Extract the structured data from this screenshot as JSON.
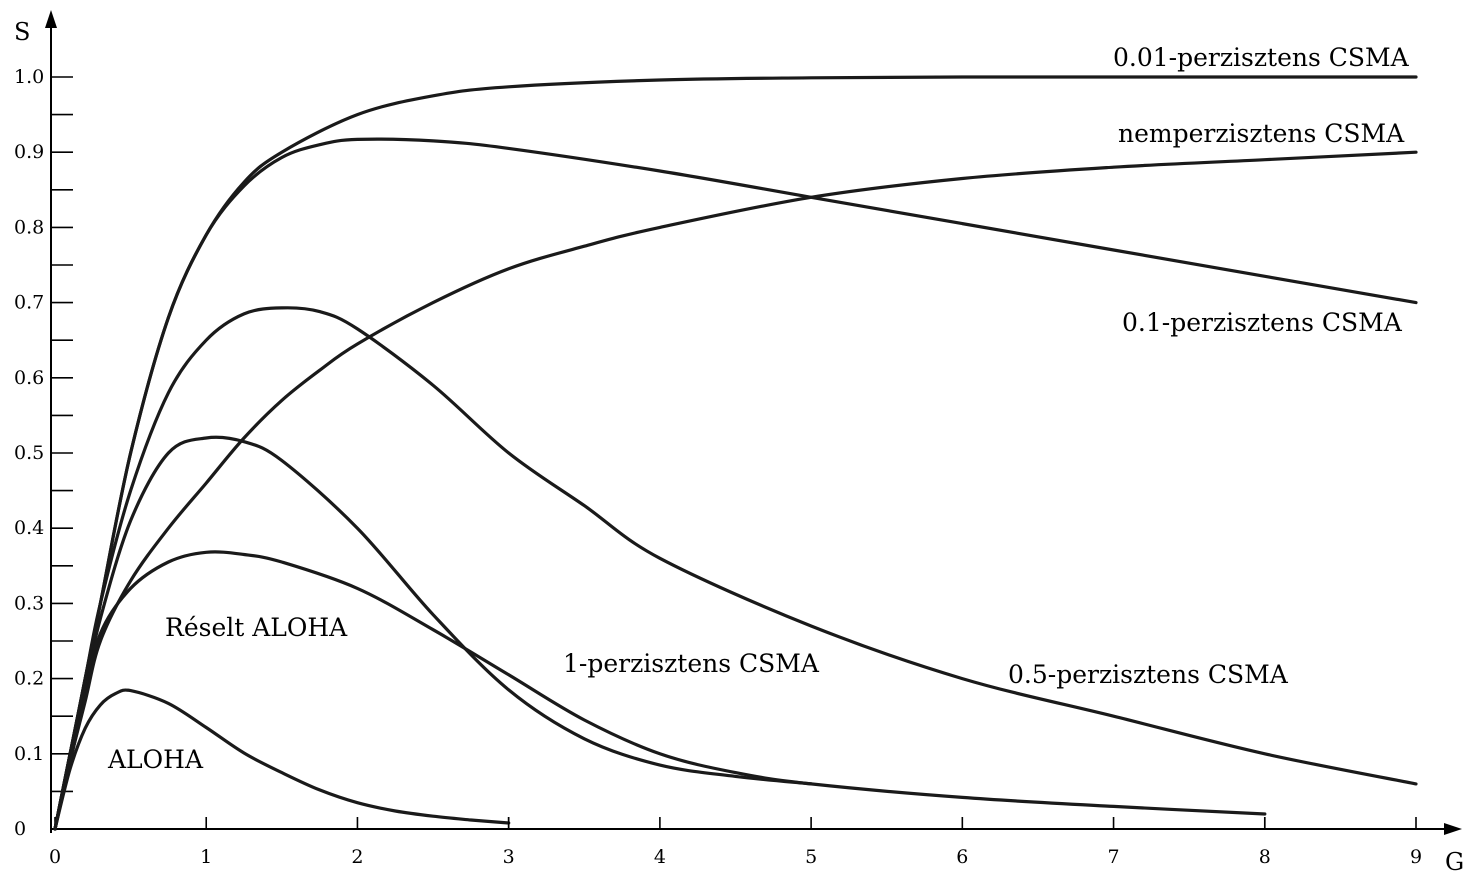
{
  "chart_data": {
    "type": "line",
    "xlabel": "G",
    "ylabel": "S",
    "xlim": [
      0,
      9
    ],
    "ylim": [
      0,
      1.0
    ],
    "x_ticks": [
      "0",
      "1",
      "2",
      "3",
      "4",
      "5",
      "6",
      "7",
      "8",
      "9"
    ],
    "y_ticks": [
      "0",
      "0.1",
      "0.2",
      "0.3",
      "0.4",
      "0.5",
      "0.6",
      "0.7",
      "0.8",
      "0.9",
      "1.0"
    ],
    "grid": false,
    "series": [
      {
        "name": "ALOHA",
        "x": [
          0,
          0.1,
          0.2,
          0.3,
          0.4,
          0.5,
          0.75,
          1.0,
          1.25,
          1.5,
          1.75,
          2.0,
          2.25,
          2.5,
          2.75,
          3.0
        ],
        "y": [
          0,
          0.08,
          0.134,
          0.165,
          0.18,
          0.184,
          0.167,
          0.135,
          0.101,
          0.075,
          0.052,
          0.035,
          0.024,
          0.017,
          0.012,
          0.008
        ]
      },
      {
        "name": "Réselt ALOHA",
        "x": [
          0,
          0.1,
          0.2,
          0.3,
          0.5,
          0.75,
          1.0,
          1.25,
          1.5,
          2.0,
          2.5,
          3.0,
          3.5,
          4.0,
          4.5,
          5.0,
          6.0,
          7.0,
          8.0
        ],
        "y": [
          0,
          0.09,
          0.175,
          0.26,
          0.32,
          0.355,
          0.368,
          0.365,
          0.355,
          0.32,
          0.265,
          0.205,
          0.145,
          0.1,
          0.075,
          0.06,
          0.042,
          0.03,
          0.02
        ]
      },
      {
        "name": "1-perzisztens CSMA",
        "x": [
          0,
          0.1,
          0.2,
          0.3,
          0.5,
          0.75,
          1.0,
          1.25,
          1.5,
          2.0,
          2.5,
          3.0,
          3.5,
          4.0,
          4.5,
          5.0
        ],
        "y": [
          0,
          0.1,
          0.19,
          0.28,
          0.41,
          0.5,
          0.52,
          0.515,
          0.49,
          0.4,
          0.285,
          0.185,
          0.12,
          0.085,
          0.07,
          0.06
        ]
      },
      {
        "name": "0.5-perzisztens CSMA",
        "x": [
          0,
          0.1,
          0.2,
          0.3,
          0.5,
          0.75,
          1.0,
          1.25,
          1.5,
          1.75,
          2.0,
          2.5,
          3.0,
          3.5,
          4.0,
          5.0,
          6.0,
          7.0,
          8.0,
          9.0
        ],
        "y": [
          0,
          0.1,
          0.2,
          0.3,
          0.45,
          0.58,
          0.65,
          0.685,
          0.693,
          0.688,
          0.665,
          0.59,
          0.5,
          0.43,
          0.36,
          0.27,
          0.2,
          0.15,
          0.1,
          0.06
        ]
      },
      {
        "name": "0.1-perzisztens CSMA",
        "x": [
          0,
          0.1,
          0.2,
          0.3,
          0.5,
          0.75,
          1.0,
          1.25,
          1.5,
          1.75,
          2.0,
          2.5,
          3.0,
          4.0,
          5.0,
          6.0,
          7.0,
          8.0,
          9.0
        ],
        "y": [
          0,
          0.1,
          0.2,
          0.3,
          0.5,
          0.68,
          0.79,
          0.855,
          0.893,
          0.91,
          0.917,
          0.915,
          0.905,
          0.875,
          0.84,
          0.805,
          0.77,
          0.735,
          0.7
        ]
      },
      {
        "name": "0.01-perzisztens CSMA",
        "x": [
          0,
          0.1,
          0.2,
          0.3,
          0.5,
          0.75,
          1.0,
          1.25,
          1.5,
          2.0,
          2.5,
          3.0,
          4.0,
          5.0,
          6.0,
          7.0,
          8.0,
          9.0
        ],
        "y": [
          0,
          0.1,
          0.2,
          0.3,
          0.5,
          0.68,
          0.79,
          0.86,
          0.9,
          0.95,
          0.975,
          0.987,
          0.996,
          0.999,
          1.0,
          1.0,
          1.0,
          1.0
        ]
      },
      {
        "name": "nemperzisztens CSMA",
        "x": [
          0,
          0.1,
          0.2,
          0.3,
          0.5,
          0.75,
          1.0,
          1.25,
          1.5,
          1.75,
          2.0,
          2.5,
          3.0,
          3.5,
          4.0,
          5.0,
          6.0,
          7.0,
          8.0,
          9.0
        ],
        "y": [
          0,
          0.09,
          0.17,
          0.25,
          0.33,
          0.4,
          0.46,
          0.52,
          0.57,
          0.61,
          0.645,
          0.7,
          0.745,
          0.775,
          0.8,
          0.84,
          0.865,
          0.88,
          0.89,
          0.9
        ]
      }
    ],
    "annotations": [
      {
        "text": "0.01-perzisztens CSMA",
        "series": "0.01-perzisztens CSMA"
      },
      {
        "text": "nemperzisztens CSMA",
        "series": "nemperzisztens CSMA"
      },
      {
        "text": "0.1-perzisztens CSMA",
        "series": "0.1-perzisztens CSMA"
      },
      {
        "text": "0.5-perzisztens CSMA",
        "series": "0.5-perzisztens CSMA"
      },
      {
        "text": "1-perzisztens CSMA",
        "series": "1-perzisztens CSMA"
      },
      {
        "text": "Réselt ALOHA",
        "series": "Réselt ALOHA"
      },
      {
        "text": "ALOHA",
        "series": "ALOHA"
      }
    ]
  }
}
